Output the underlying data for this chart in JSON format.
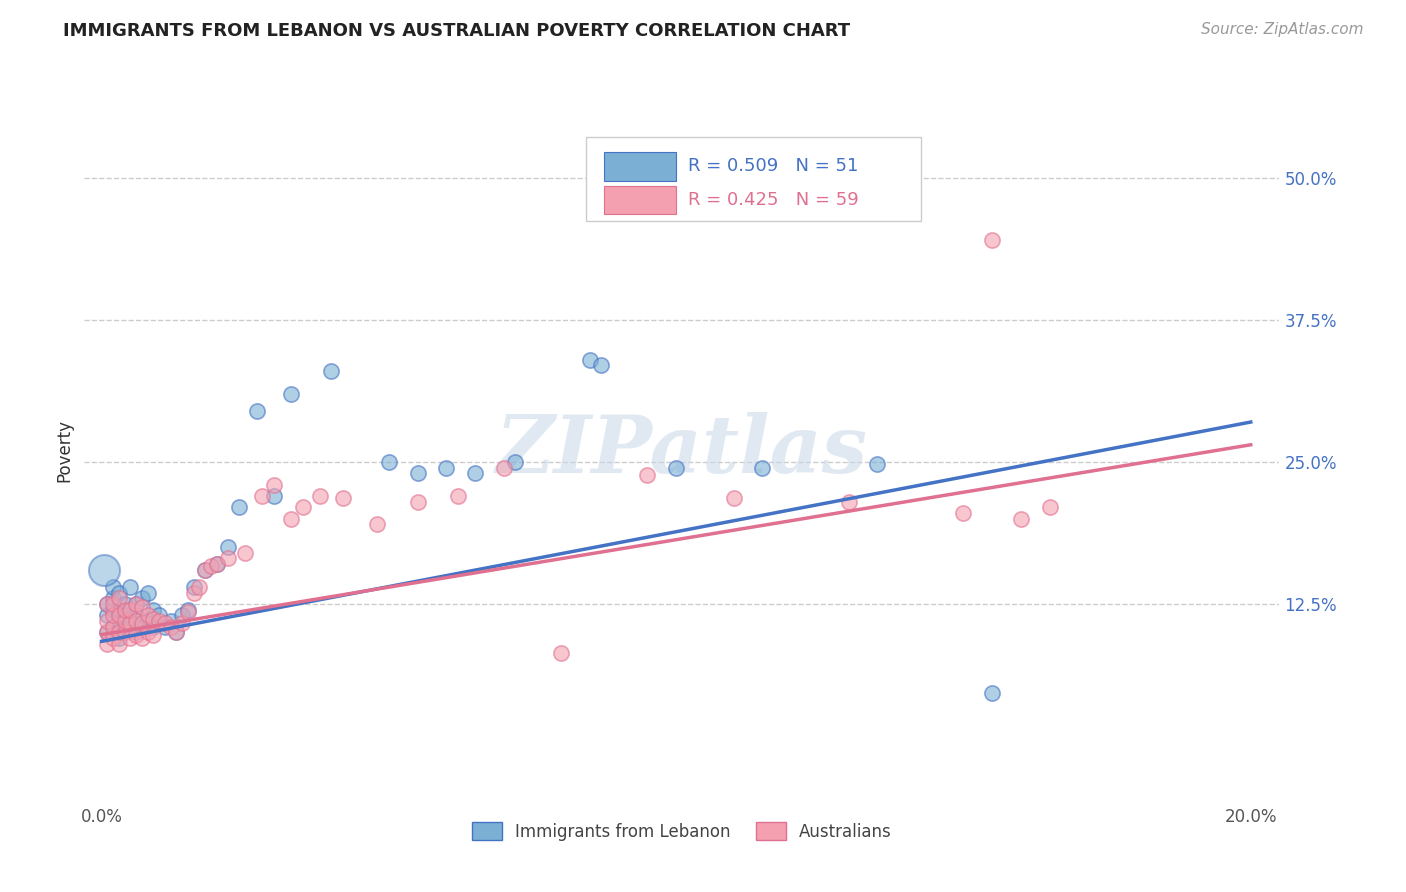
{
  "title": "IMMIGRANTS FROM LEBANON VS AUSTRALIAN POVERTY CORRELATION CHART",
  "source": "Source: ZipAtlas.com",
  "ylabel": "Poverty",
  "xlim": [
    -0.003,
    0.205
  ],
  "ylim": [
    -0.05,
    0.57
  ],
  "xtick_labels": [
    "0.0%",
    "20.0%"
  ],
  "xtick_positions": [
    0.0,
    0.2
  ],
  "ytick_labels": [
    "12.5%",
    "25.0%",
    "37.5%",
    "50.0%"
  ],
  "ytick_positions": [
    0.125,
    0.25,
    0.375,
    0.5
  ],
  "grid_color": "#cccccc",
  "background_color": "#ffffff",
  "watermark_text": "ZIPatlas",
  "series1_color": "#7bafd4",
  "series2_color": "#f4a0b0",
  "series1_line_color": "#4472c4",
  "series2_line_color": "#e07090",
  "series1_label": "Immigrants from Lebanon",
  "series2_label": "Australians",
  "legend1_text": "R = 0.509   N = 51",
  "legend2_text": "R = 0.425   N = 59",
  "line1_x": [
    0.0,
    0.2
  ],
  "line1_y": [
    0.092,
    0.285
  ],
  "line2_x": [
    0.0,
    0.2
  ],
  "line2_y": [
    0.098,
    0.265
  ],
  "s1_x": [
    0.001,
    0.001,
    0.001,
    0.002,
    0.002,
    0.002,
    0.002,
    0.003,
    0.003,
    0.003,
    0.003,
    0.004,
    0.004,
    0.004,
    0.005,
    0.005,
    0.006,
    0.006,
    0.006,
    0.007,
    0.007,
    0.008,
    0.008,
    0.009,
    0.009,
    0.01,
    0.011,
    0.012,
    0.013,
    0.014,
    0.015,
    0.016,
    0.018,
    0.02,
    0.022,
    0.024,
    0.027,
    0.03,
    0.033,
    0.04,
    0.05,
    0.055,
    0.06,
    0.065,
    0.072,
    0.085,
    0.087,
    0.1,
    0.115,
    0.135,
    0.155
  ],
  "s1_y": [
    0.1,
    0.115,
    0.125,
    0.105,
    0.12,
    0.13,
    0.14,
    0.095,
    0.11,
    0.12,
    0.135,
    0.105,
    0.115,
    0.125,
    0.11,
    0.14,
    0.1,
    0.115,
    0.125,
    0.105,
    0.13,
    0.11,
    0.135,
    0.105,
    0.12,
    0.115,
    0.105,
    0.11,
    0.1,
    0.115,
    0.12,
    0.14,
    0.155,
    0.16,
    0.175,
    0.21,
    0.295,
    0.22,
    0.31,
    0.33,
    0.25,
    0.24,
    0.245,
    0.24,
    0.25,
    0.34,
    0.335,
    0.245,
    0.245,
    0.248,
    0.047
  ],
  "s2_x": [
    0.001,
    0.001,
    0.001,
    0.001,
    0.002,
    0.002,
    0.002,
    0.002,
    0.003,
    0.003,
    0.003,
    0.003,
    0.004,
    0.004,
    0.004,
    0.005,
    0.005,
    0.005,
    0.006,
    0.006,
    0.006,
    0.007,
    0.007,
    0.007,
    0.008,
    0.008,
    0.009,
    0.009,
    0.01,
    0.011,
    0.012,
    0.013,
    0.014,
    0.015,
    0.016,
    0.017,
    0.018,
    0.019,
    0.02,
    0.022,
    0.025,
    0.028,
    0.03,
    0.033,
    0.035,
    0.038,
    0.042,
    0.048,
    0.055,
    0.062,
    0.07,
    0.08,
    0.095,
    0.11,
    0.13,
    0.15,
    0.16,
    0.165,
    0.155
  ],
  "s2_y": [
    0.09,
    0.1,
    0.11,
    0.125,
    0.095,
    0.105,
    0.115,
    0.125,
    0.09,
    0.1,
    0.115,
    0.13,
    0.1,
    0.11,
    0.12,
    0.095,
    0.108,
    0.12,
    0.098,
    0.11,
    0.125,
    0.095,
    0.108,
    0.122,
    0.1,
    0.115,
    0.098,
    0.112,
    0.11,
    0.108,
    0.105,
    0.1,
    0.108,
    0.118,
    0.135,
    0.14,
    0.155,
    0.158,
    0.16,
    0.165,
    0.17,
    0.22,
    0.23,
    0.2,
    0.21,
    0.22,
    0.218,
    0.195,
    0.215,
    0.22,
    0.245,
    0.082,
    0.238,
    0.218,
    0.215,
    0.205,
    0.2,
    0.21,
    0.445
  ]
}
